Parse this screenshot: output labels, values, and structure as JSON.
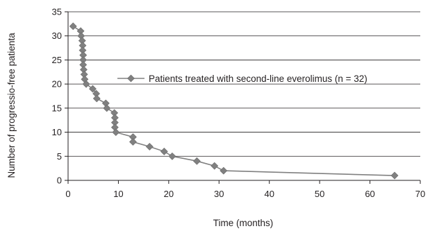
{
  "chart_data": {
    "type": "line",
    "title": "",
    "xlabel": "Time (months)",
    "ylabel": "Number of progressio-free patienta",
    "xlim": [
      0,
      70
    ],
    "ylim": [
      0,
      35
    ],
    "xticks": [
      "0",
      "10",
      "20",
      "30",
      "40",
      "50",
      "60",
      "70"
    ],
    "yticks": [
      "0",
      "5",
      "10",
      "15",
      "20",
      "25",
      "30",
      "35"
    ],
    "grid": "horizontal",
    "legend_position": "center-right",
    "series": [
      {
        "name": "Patients treated with second-line everolimus (n = 32)",
        "color": "#808080",
        "marker": "diamond",
        "points": [
          [
            1,
            32
          ],
          [
            2.5,
            31
          ],
          [
            2.6,
            30
          ],
          [
            2.8,
            29
          ],
          [
            2.9,
            28
          ],
          [
            2.9,
            27
          ],
          [
            3.0,
            26
          ],
          [
            3.0,
            25
          ],
          [
            3.0,
            24
          ],
          [
            3.1,
            23
          ],
          [
            3.2,
            22
          ],
          [
            3.3,
            21
          ],
          [
            3.6,
            20
          ],
          [
            4.9,
            19
          ],
          [
            5.6,
            18
          ],
          [
            5.7,
            17
          ],
          [
            7.5,
            16
          ],
          [
            7.7,
            15
          ],
          [
            9.2,
            14
          ],
          [
            9.3,
            13
          ],
          [
            9.3,
            12
          ],
          [
            9.3,
            11
          ],
          [
            9.5,
            10
          ],
          [
            12.9,
            9
          ],
          [
            12.9,
            8
          ],
          [
            16.2,
            7
          ],
          [
            19.1,
            6
          ],
          [
            20.7,
            5
          ],
          [
            25.6,
            4
          ],
          [
            29.1,
            3
          ],
          [
            30.9,
            2
          ],
          [
            64.9,
            1
          ]
        ]
      }
    ]
  }
}
